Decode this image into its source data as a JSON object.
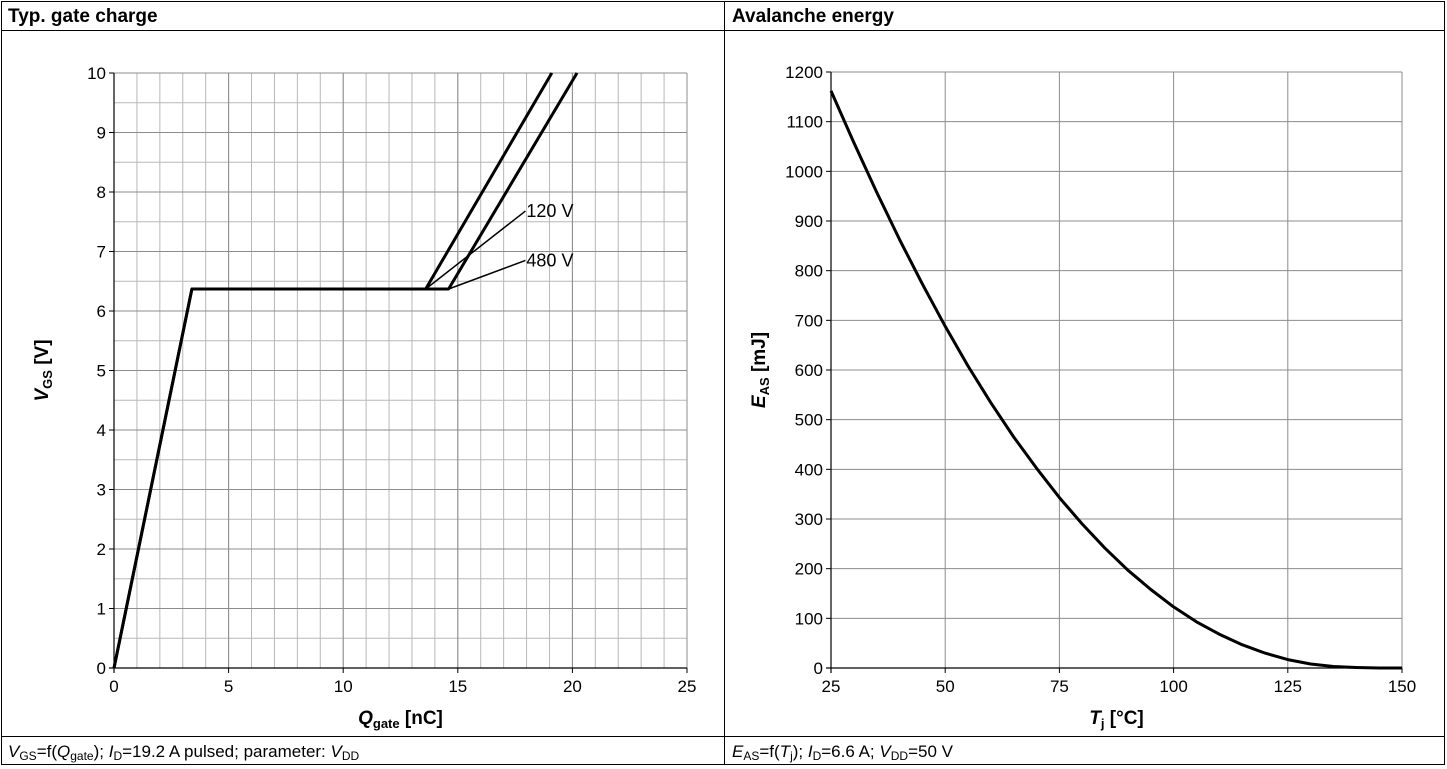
{
  "panels": {
    "left_title": "Typ. gate charge",
    "right_title": "Avalanche energy"
  },
  "captions": {
    "left": {
      "v": "V",
      "v_sub": "GS",
      "eq": "=f(",
      "q": "Q",
      "q_sub": "gate",
      "rest1": "); ",
      "i": "I",
      "i_sub": "D",
      "rest2": "=19.2 A pulsed; parameter: ",
      "vdd": "V",
      "vdd_sub": "DD"
    },
    "right": {
      "e": "E",
      "e_sub": "AS",
      "eq": "=f(",
      "t": "T",
      "t_sub": "j",
      "rest1": "); ",
      "i": "I",
      "i_sub": "D",
      "rest2": "=6.6 A; ",
      "vdd": "V",
      "vdd_sub": "DD",
      "rest3": "=50 V"
    }
  },
  "chart_data": [
    {
      "type": "line",
      "title": "Typ. gate charge",
      "xlabel": {
        "main": "Q",
        "sub": "gate",
        "unit": " [nC]"
      },
      "ylabel": {
        "main": "V",
        "sub": "GS",
        "unit": " [V]"
      },
      "xlim": [
        0,
        25
      ],
      "ylim": [
        0,
        10
      ],
      "xticks": [
        0,
        5,
        10,
        15,
        20,
        25
      ],
      "yticks": [
        0,
        1,
        2,
        3,
        4,
        5,
        6,
        7,
        8,
        9,
        10
      ],
      "grid": true,
      "series": [
        {
          "name": "120 V",
          "x": [
            0,
            3.4,
            13.6,
            19.1
          ],
          "y": [
            0,
            6.37,
            6.37,
            10
          ]
        },
        {
          "name": "480 V",
          "x": [
            0,
            3.4,
            14.6,
            20.2
          ],
          "y": [
            0,
            6.37,
            6.37,
            10
          ]
        }
      ],
      "annotations": [
        {
          "text": "120 V",
          "point": [
            13.6,
            6.37
          ],
          "label_at": [
            17.95,
            7.68
          ]
        },
        {
          "text": "480 V",
          "point": [
            14.6,
            6.37
          ],
          "label_at": [
            17.95,
            6.85
          ]
        }
      ]
    },
    {
      "type": "line",
      "title": "Avalanche energy",
      "xlabel": {
        "main": "T",
        "sub": "j",
        "unit": " [°C]"
      },
      "ylabel": {
        "main": "E",
        "sub": "AS",
        "unit": " [mJ]"
      },
      "xlim": [
        25,
        150
      ],
      "ylim": [
        0,
        1200
      ],
      "xticks": [
        25,
        50,
        75,
        100,
        125,
        150
      ],
      "yticks": [
        0,
        100,
        200,
        300,
        400,
        500,
        600,
        700,
        800,
        900,
        1000,
        1100,
        1200
      ],
      "grid": true,
      "series": [
        {
          "x": [
            25,
            30,
            35,
            40,
            45,
            50,
            55,
            60,
            65,
            70,
            75,
            80,
            85,
            90,
            95,
            100,
            105,
            110,
            115,
            120,
            125,
            130,
            135,
            140,
            145,
            150
          ],
          "y": [
            1162,
            1058,
            958,
            863,
            773,
            688,
            608,
            534,
            465,
            402,
            343,
            290,
            241,
            197,
            158,
            123,
            93,
            68,
            47,
            30,
            17,
            8,
            3,
            1,
            0,
            0
          ]
        }
      ]
    }
  ]
}
